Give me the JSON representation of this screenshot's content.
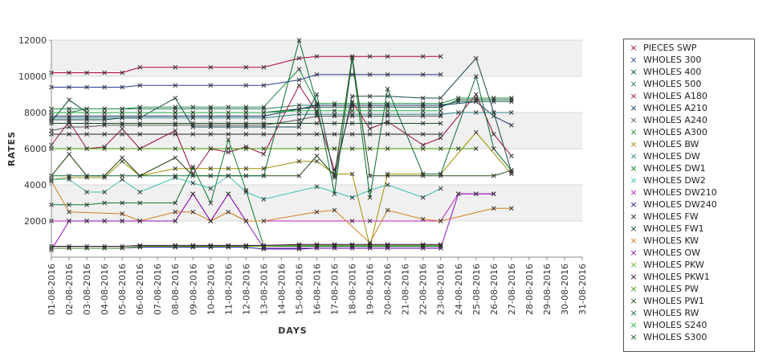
{
  "chart_data": {
    "type": "line",
    "xlabel": "DAYS",
    "ylabel": "RATES",
    "ylim": [
      0,
      12000
    ],
    "yticks": [
      2000,
      4000,
      6000,
      8000,
      10000,
      12000
    ],
    "categories": [
      "01-08-2016",
      "02-08-2016",
      "03-08-2016",
      "04-08-2016",
      "05-08-2016",
      "06-08-2016",
      "07-08-2016",
      "08-08-2016",
      "09-08-2016",
      "10-08-2016",
      "11-08-2016",
      "12-08-2016",
      "13-08-2016",
      "14-08-2016",
      "15-08-2016",
      "16-08-2016",
      "17-08-2016",
      "18-08-2016",
      "19-08-2016",
      "20-08-2016",
      "21-08-2016",
      "22-08-2016",
      "23-08-2016",
      "24-08-2016",
      "25-08-2016",
      "26-08-2016",
      "27-08-2016",
      "28-08-2016",
      "29-08-2016",
      "30-08-2016",
      "31-08-2016"
    ],
    "grid": "horizontal bands",
    "legend_position": "right",
    "series": [
      {
        "name": "PIECES SWP",
        "color": "#b00040",
        "values": [
          10200,
          10200,
          10200,
          10200,
          10200,
          10500,
          null,
          10500,
          null,
          10500,
          null,
          10500,
          10500,
          null,
          11000,
          11100,
          null,
          11100,
          11100,
          11100,
          null,
          11100,
          11100,
          null,
          null,
          null,
          null,
          null,
          null,
          null,
          null
        ]
      },
      {
        "name": "WHOLES 300",
        "color": "#2a3c8c",
        "values": [
          9400,
          9400,
          9400,
          9400,
          9400,
          9500,
          null,
          9500,
          null,
          9500,
          null,
          9500,
          9500,
          null,
          9800,
          10100,
          null,
          10100,
          10100,
          10100,
          null,
          10100,
          10100,
          null,
          null,
          null,
          null,
          null,
          null,
          null,
          null
        ]
      },
      {
        "name": "WHOLES 400",
        "color": "#0b4a2a",
        "values": [
          7500,
          8700,
          8000,
          8000,
          8000,
          8000,
          null,
          8000,
          null,
          8000,
          null,
          8000,
          8000,
          null,
          8200,
          8300,
          null,
          8300,
          8300,
          8300,
          null,
          8300,
          8300,
          8700,
          8700,
          8700,
          8700,
          null,
          null,
          null,
          null
        ]
      },
      {
        "name": "WHOLES 500",
        "color": "#2a7a5a",
        "values": [
          8000,
          8000,
          8200,
          8200,
          8200,
          8200,
          null,
          8200,
          null,
          8200,
          null,
          8200,
          8200,
          null,
          8400,
          8400,
          null,
          8400,
          8400,
          8400,
          null,
          8400,
          8400,
          8600,
          8600,
          8600,
          8600,
          null,
          null,
          null,
          null
        ]
      },
      {
        "name": "WHOLES A180",
        "color": "#a01040",
        "values": [
          6200,
          7500,
          6000,
          6100,
          7100,
          6000,
          null,
          7000,
          4600,
          6000,
          5800,
          6100,
          5700,
          null,
          9500,
          8000,
          4800,
          8600,
          7100,
          7500,
          null,
          6200,
          6600,
          null,
          9000,
          6800,
          5600,
          null,
          null,
          null,
          null
        ]
      },
      {
        "name": "WHOLES A210",
        "color": "#1a3a6a",
        "values": [
          7800,
          7800,
          7800,
          7800,
          7800,
          7800,
          null,
          7800,
          7800,
          7800,
          7800,
          7800,
          7800,
          null,
          8200,
          8400,
          8400,
          8400,
          8400,
          8400,
          null,
          8400,
          8400,
          null,
          8600,
          7800,
          7300,
          null,
          null,
          null,
          null
        ]
      },
      {
        "name": "WHOLES A240",
        "color": "#555555",
        "values": [
          7000,
          7200,
          7200,
          7300,
          7300,
          7300,
          null,
          7300,
          7300,
          7300,
          7300,
          7300,
          7300,
          null,
          7600,
          7800,
          7800,
          7800,
          7800,
          7800,
          null,
          7800,
          7800,
          null,
          null,
          null,
          null,
          null,
          null,
          null,
          null
        ]
      },
      {
        "name": "WHOLES A300",
        "color": "#1a8a3a",
        "values": [
          8200,
          8200,
          8200,
          8200,
          8200,
          8300,
          null,
          8300,
          8300,
          8300,
          8300,
          8300,
          8300,
          null,
          10400,
          8500,
          8500,
          8500,
          8500,
          8500,
          null,
          8500,
          8500,
          8800,
          8800,
          8800,
          8800,
          null,
          null,
          null,
          null
        ]
      },
      {
        "name": "WHOLES BW",
        "color": "#a09000",
        "values": [
          4300,
          4400,
          4400,
          4400,
          5300,
          4500,
          null,
          4900,
          4900,
          4900,
          4900,
          4900,
          4900,
          null,
          5300,
          5300,
          4600,
          4600,
          600,
          4600,
          null,
          4600,
          4600,
          null,
          6900,
          null,
          4600,
          null,
          null,
          null,
          null
        ]
      },
      {
        "name": "WHOLES DW",
        "color": "#2a8a8a",
        "values": [
          7700,
          7700,
          7700,
          7700,
          7700,
          7700,
          null,
          7700,
          7700,
          7700,
          7700,
          7700,
          7700,
          null,
          7900,
          7900,
          7900,
          7900,
          7900,
          7900,
          null,
          7900,
          7900,
          8000,
          8000,
          8000,
          8000,
          null,
          null,
          null,
          null
        ]
      },
      {
        "name": "WHOLES DW1",
        "color": "#0a7a2a",
        "values": [
          2900,
          2900,
          2900,
          3000,
          3000,
          3000,
          null,
          3000,
          5000,
          3000,
          6500,
          3700,
          600,
          null,
          600,
          600,
          600,
          600,
          600,
          600,
          null,
          600,
          600,
          null,
          null,
          null,
          null,
          null,
          null,
          null,
          null
        ]
      },
      {
        "name": "WHOLES DW2",
        "color": "#40c0b0",
        "values": [
          4300,
          4300,
          3600,
          3600,
          4300,
          3600,
          null,
          4400,
          4100,
          3800,
          4500,
          3600,
          3200,
          null,
          null,
          3900,
          null,
          3300,
          3700,
          4000,
          null,
          3300,
          3800,
          null,
          null,
          null,
          null,
          null,
          null,
          null,
          null
        ]
      },
      {
        "name": "WHOLES DW210",
        "color": "#c020c0",
        "values": [
          2000,
          2000,
          2000,
          2000,
          2000,
          2000,
          null,
          2000,
          3500,
          2000,
          3500,
          2000,
          null,
          null,
          null,
          null,
          null,
          2000,
          2000,
          null,
          null,
          null,
          2000,
          3500,
          3500,
          3500,
          null,
          null,
          null,
          null,
          null
        ]
      },
      {
        "name": "WHOLES DW240",
        "color": "#1a1a8a",
        "values": [
          500,
          500,
          500,
          500,
          500,
          550,
          null,
          550,
          550,
          550,
          550,
          550,
          450,
          null,
          450,
          500,
          500,
          500,
          500,
          500,
          null,
          500,
          500,
          null,
          null,
          null,
          null,
          null,
          null,
          null,
          null
        ]
      },
      {
        "name": "WHOLES FW",
        "color": "#222222",
        "values": [
          6800,
          6800,
          6800,
          6800,
          6800,
          6800,
          null,
          6800,
          6800,
          6800,
          6800,
          6800,
          6800,
          null,
          6800,
          6800,
          6800,
          6800,
          6800,
          6800,
          null,
          6800,
          6800,
          null,
          null,
          null,
          null,
          null,
          null,
          null,
          null
        ]
      },
      {
        "name": "WHOLES FW1",
        "color": "#1a4a4a",
        "values": [
          7600,
          7600,
          7600,
          7600,
          7700,
          7700,
          null,
          8800,
          7200,
          7200,
          7200,
          7200,
          7200,
          null,
          7200,
          9000,
          4400,
          8900,
          8900,
          8900,
          null,
          8800,
          8800,
          null,
          11000,
          8000,
          4700,
          null,
          null,
          null,
          null
        ]
      },
      {
        "name": "WHOLES KW",
        "color": "#d08020",
        "values": [
          4200,
          2500,
          null,
          null,
          2400,
          2000,
          null,
          2500,
          2500,
          2000,
          2500,
          2000,
          2000,
          null,
          null,
          2500,
          2600,
          null,
          800,
          2600,
          null,
          2100,
          2000,
          null,
          null,
          2700,
          2700,
          null,
          null,
          null,
          null
        ]
      },
      {
        "name": "WHOLES OW",
        "color": "#9010c0",
        "values": [
          400,
          2000,
          2000,
          2000,
          2000,
          2000,
          null,
          2000,
          3500,
          2000,
          3500,
          2000,
          500,
          null,
          500,
          500,
          500,
          500,
          500,
          500,
          null,
          500,
          500,
          3500,
          3500,
          3500,
          null,
          null,
          null,
          null,
          null
        ]
      },
      {
        "name": "WHOLES PKW",
        "color": "#60b020",
        "values": [
          500,
          500,
          500,
          500,
          500,
          600,
          null,
          600,
          600,
          600,
          600,
          600,
          600,
          null,
          650,
          650,
          650,
          650,
          650,
          650,
          null,
          650,
          650,
          null,
          null,
          null,
          null,
          null,
          null,
          null,
          null
        ]
      },
      {
        "name": "WHOLES PKW1",
        "color": "#300030",
        "values": [
          600,
          600,
          600,
          600,
          600,
          650,
          null,
          650,
          650,
          650,
          650,
          650,
          650,
          null,
          700,
          700,
          700,
          700,
          700,
          700,
          null,
          700,
          700,
          null,
          null,
          null,
          null,
          null,
          null,
          null,
          null
        ]
      },
      {
        "name": "WHOLES PW",
        "color": "#3a9a00",
        "values": [
          6000,
          6000,
          6000,
          6000,
          6000,
          6000,
          null,
          6000,
          6000,
          6000,
          6000,
          6000,
          6000,
          null,
          6000,
          6000,
          6000,
          6000,
          6000,
          6000,
          null,
          6000,
          6000,
          6000,
          6000,
          null,
          null,
          null,
          null,
          null,
          null
        ]
      },
      {
        "name": "WHOLES PW1",
        "color": "#204a10",
        "values": [
          4500,
          5700,
          4500,
          4500,
          5500,
          4500,
          null,
          5500,
          4500,
          4500,
          4500,
          4500,
          4500,
          null,
          4500,
          5600,
          4500,
          11100,
          4500,
          4500,
          null,
          4500,
          4500,
          null,
          null,
          4500,
          4800,
          null,
          null,
          null,
          null
        ]
      },
      {
        "name": "WHOLES RW",
        "color": "#0a6a30",
        "values": [
          4500,
          4500,
          4500,
          4500,
          4500,
          4500,
          null,
          4500,
          4500,
          4500,
          4500,
          4500,
          4500,
          null,
          12000,
          8500,
          3500,
          11000,
          3300,
          9300,
          null,
          4600,
          4600,
          null,
          10000,
          6000,
          4800,
          null,
          null,
          null,
          null
        ]
      },
      {
        "name": "WHOLES S240",
        "color": "#20b040",
        "values": [
          8000,
          8000,
          8000,
          8000,
          8000,
          8000,
          null,
          8000,
          8000,
          8000,
          8000,
          8000,
          8000,
          null,
          8100,
          8100,
          8100,
          8100,
          8100,
          8100,
          null,
          8100,
          8100,
          null,
          null,
          null,
          null,
          null,
          null,
          null,
          null
        ]
      },
      {
        "name": "WHOLES S300",
        "color": "#105020",
        "values": [
          7400,
          7400,
          7400,
          7400,
          7400,
          7400,
          null,
          7400,
          7400,
          7400,
          7400,
          7400,
          7400,
          null,
          7400,
          7400,
          7400,
          7400,
          7400,
          7400,
          null,
          7400,
          7400,
          null,
          null,
          null,
          null,
          null,
          null,
          null,
          null
        ]
      }
    ]
  },
  "legend": {
    "marker": "×"
  }
}
